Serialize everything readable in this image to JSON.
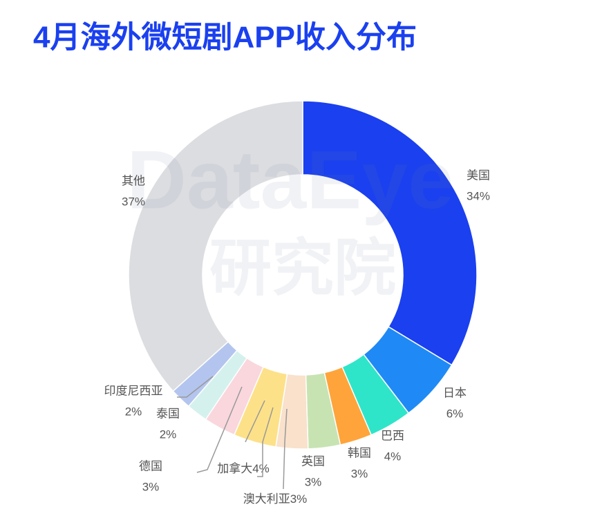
{
  "chart_data": {
    "type": "donut",
    "title": "4月海外微短剧APP收入分布",
    "watermark": [
      "DataEye",
      "研究院"
    ],
    "categories": [
      "美国",
      "日本",
      "巴西",
      "韩国",
      "英国",
      "澳大利亚",
      "加拿大",
      "德国",
      "泰国",
      "印度尼西亚",
      "其他"
    ],
    "values": [
      34,
      6,
      4,
      3,
      3,
      3,
      4,
      3,
      2,
      2,
      37
    ],
    "value_labels": [
      "34%",
      "6%",
      "4%",
      "3%",
      "3%",
      "3%",
      "4%",
      "3%",
      "2%",
      "2%",
      "37%"
    ],
    "colors": [
      "#1a40ef",
      "#1f8af5",
      "#2fe5c9",
      "#ffa43a",
      "#c7e3b2",
      "#f9e1cb",
      "#fde189",
      "#f9d7dd",
      "#d5f1ee",
      "#b3c5ee",
      "#dcdde1"
    ]
  }
}
